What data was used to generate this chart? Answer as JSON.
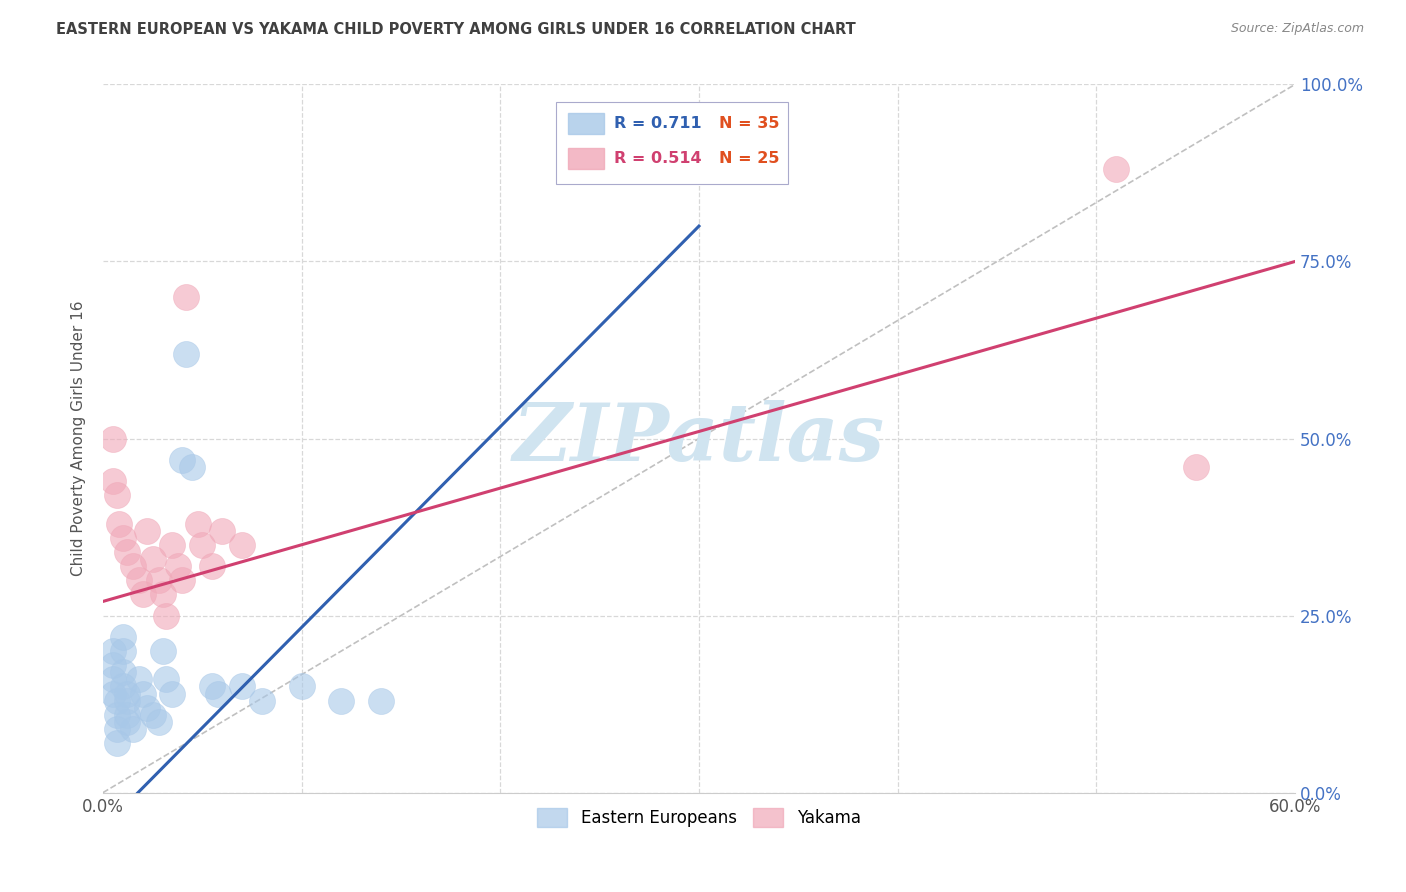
{
  "title": "EASTERN EUROPEAN VS YAKAMA CHILD POVERTY AMONG GIRLS UNDER 16 CORRELATION CHART",
  "source": "Source: ZipAtlas.com",
  "ylabel": "Child Poverty Among Girls Under 16",
  "xlim": [
    0.0,
    0.6
  ],
  "ylim": [
    0.0,
    1.0
  ],
  "xticks": [
    0.0,
    0.1,
    0.2,
    0.3,
    0.4,
    0.5,
    0.6
  ],
  "xticklabels": [
    "0.0%",
    "",
    "",
    "",
    "",
    "",
    "60.0%"
  ],
  "yticks": [
    0.0,
    0.25,
    0.5,
    0.75,
    1.0
  ],
  "yticklabels": [
    "0.0%",
    "25.0%",
    "50.0%",
    "75.0%",
    "100.0%"
  ],
  "legend_r1": "R = 0.711",
  "legend_n1": "N = 35",
  "legend_r2": "R = 0.514",
  "legend_n2": "N = 25",
  "blue_scatter_color": "#a8c8e8",
  "pink_scatter_color": "#f0a8b8",
  "blue_line_color": "#3060b0",
  "pink_line_color": "#d04070",
  "diag_line_color": "#c0c0c0",
  "watermark": "ZIPatlas",
  "watermark_color": "#d0e4f0",
  "background_color": "#ffffff",
  "grid_color": "#d8d8d8",
  "title_color": "#404040",
  "yaxis_label_color": "#4472c4",
  "eastern_europeans": [
    [
      0.005,
      0.2
    ],
    [
      0.005,
      0.18
    ],
    [
      0.005,
      0.16
    ],
    [
      0.005,
      0.14
    ],
    [
      0.007,
      0.13
    ],
    [
      0.007,
      0.11
    ],
    [
      0.007,
      0.09
    ],
    [
      0.007,
      0.07
    ],
    [
      0.01,
      0.22
    ],
    [
      0.01,
      0.2
    ],
    [
      0.01,
      0.17
    ],
    [
      0.01,
      0.15
    ],
    [
      0.012,
      0.14
    ],
    [
      0.012,
      0.13
    ],
    [
      0.012,
      0.11
    ],
    [
      0.012,
      0.1
    ],
    [
      0.015,
      0.09
    ],
    [
      0.018,
      0.16
    ],
    [
      0.02,
      0.14
    ],
    [
      0.022,
      0.12
    ],
    [
      0.025,
      0.11
    ],
    [
      0.028,
      0.1
    ],
    [
      0.03,
      0.2
    ],
    [
      0.032,
      0.16
    ],
    [
      0.035,
      0.14
    ],
    [
      0.04,
      0.47
    ],
    [
      0.042,
      0.62
    ],
    [
      0.045,
      0.46
    ],
    [
      0.055,
      0.15
    ],
    [
      0.058,
      0.14
    ],
    [
      0.07,
      0.15
    ],
    [
      0.08,
      0.13
    ],
    [
      0.1,
      0.15
    ],
    [
      0.12,
      0.13
    ],
    [
      0.14,
      0.13
    ]
  ],
  "yakama": [
    [
      0.005,
      0.5
    ],
    [
      0.005,
      0.44
    ],
    [
      0.007,
      0.42
    ],
    [
      0.008,
      0.38
    ],
    [
      0.01,
      0.36
    ],
    [
      0.012,
      0.34
    ],
    [
      0.015,
      0.32
    ],
    [
      0.018,
      0.3
    ],
    [
      0.02,
      0.28
    ],
    [
      0.022,
      0.37
    ],
    [
      0.025,
      0.33
    ],
    [
      0.028,
      0.3
    ],
    [
      0.03,
      0.28
    ],
    [
      0.032,
      0.25
    ],
    [
      0.035,
      0.35
    ],
    [
      0.038,
      0.32
    ],
    [
      0.04,
      0.3
    ],
    [
      0.042,
      0.7
    ],
    [
      0.048,
      0.38
    ],
    [
      0.05,
      0.35
    ],
    [
      0.055,
      0.32
    ],
    [
      0.06,
      0.37
    ],
    [
      0.07,
      0.35
    ],
    [
      0.51,
      0.88
    ],
    [
      0.55,
      0.46
    ]
  ],
  "blue_line_x": [
    0.0,
    0.3
  ],
  "blue_line_y": [
    -0.05,
    0.8
  ],
  "pink_line_x": [
    0.0,
    0.6
  ],
  "pink_line_y": [
    0.27,
    0.75
  ],
  "diag_line_x": [
    0.0,
    0.6
  ],
  "diag_line_y": [
    0.0,
    1.0
  ]
}
